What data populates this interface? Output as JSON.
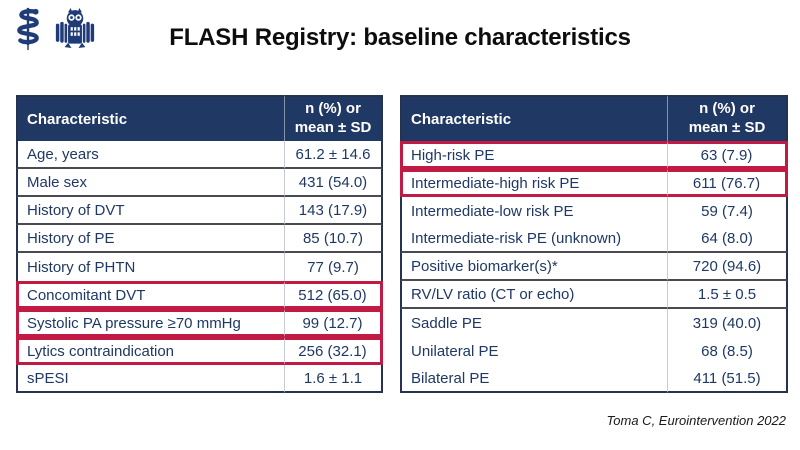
{
  "title": "FLASH Registry: baseline characteristics",
  "citation": "Toma C, Eurointervention 2022",
  "logos": {
    "left": "rod-of-asclepius-icon",
    "right": "owl-icon"
  },
  "colors": {
    "header_bg": "#203864",
    "text_navy": "#1F3864",
    "highlight_red": "#C01A45",
    "title_color": "#0d0d0d"
  },
  "tables": [
    {
      "id": "left",
      "headers": {
        "characteristic": "Characteristic",
        "value": "n (%) or\nmean ± SD"
      },
      "rows": [
        {
          "label": "Age, years",
          "value": "61.2 ± 14.6"
        },
        {
          "label": "Male sex",
          "value": "431 (54.0)"
        },
        {
          "label": "History of DVT",
          "value": "143 (17.9)"
        },
        {
          "label": "History of PE",
          "value": "85 (10.7)"
        },
        {
          "label": "History of PHTN",
          "value": "77 (9.7)"
        },
        {
          "label": "Concomitant DVT",
          "value": "512 (65.0)",
          "highlight": true
        },
        {
          "label": "Systolic PA pressure ≥70 mmHg",
          "value": "99 (12.7)",
          "highlight": true
        },
        {
          "label": "Lytics contraindication",
          "value": "256 (32.1)",
          "highlight": true
        },
        {
          "label": "sPESI",
          "value": "1.6 ± 1.1"
        }
      ]
    },
    {
      "id": "right",
      "headers": {
        "characteristic": "Characteristic",
        "value": "n (%) or\nmean ± SD"
      },
      "rows": [
        {
          "label": "High-risk PE",
          "value": "63 (7.9)",
          "highlight": true
        },
        {
          "label": "Intermediate-high risk PE",
          "value": "611 (76.7)",
          "highlight": true
        },
        {
          "label": "Intermediate-low risk PE",
          "value": "59 (7.4)",
          "divider": false
        },
        {
          "label": "Intermediate-risk PE (unknown)",
          "value": "64 (8.0)"
        },
        {
          "label": "Positive biomarker(s)*",
          "value": "720 (94.6)"
        },
        {
          "label": "RV/LV ratio (CT or echo)",
          "value": "1.5 ± 0.5"
        },
        {
          "label": "Saddle PE",
          "value": "319 (40.0)",
          "divider": false
        },
        {
          "label": "Unilateral PE",
          "value": "68 (8.5)",
          "divider": false
        },
        {
          "label": "Bilateral PE",
          "value": "411 (51.5)"
        }
      ]
    }
  ]
}
